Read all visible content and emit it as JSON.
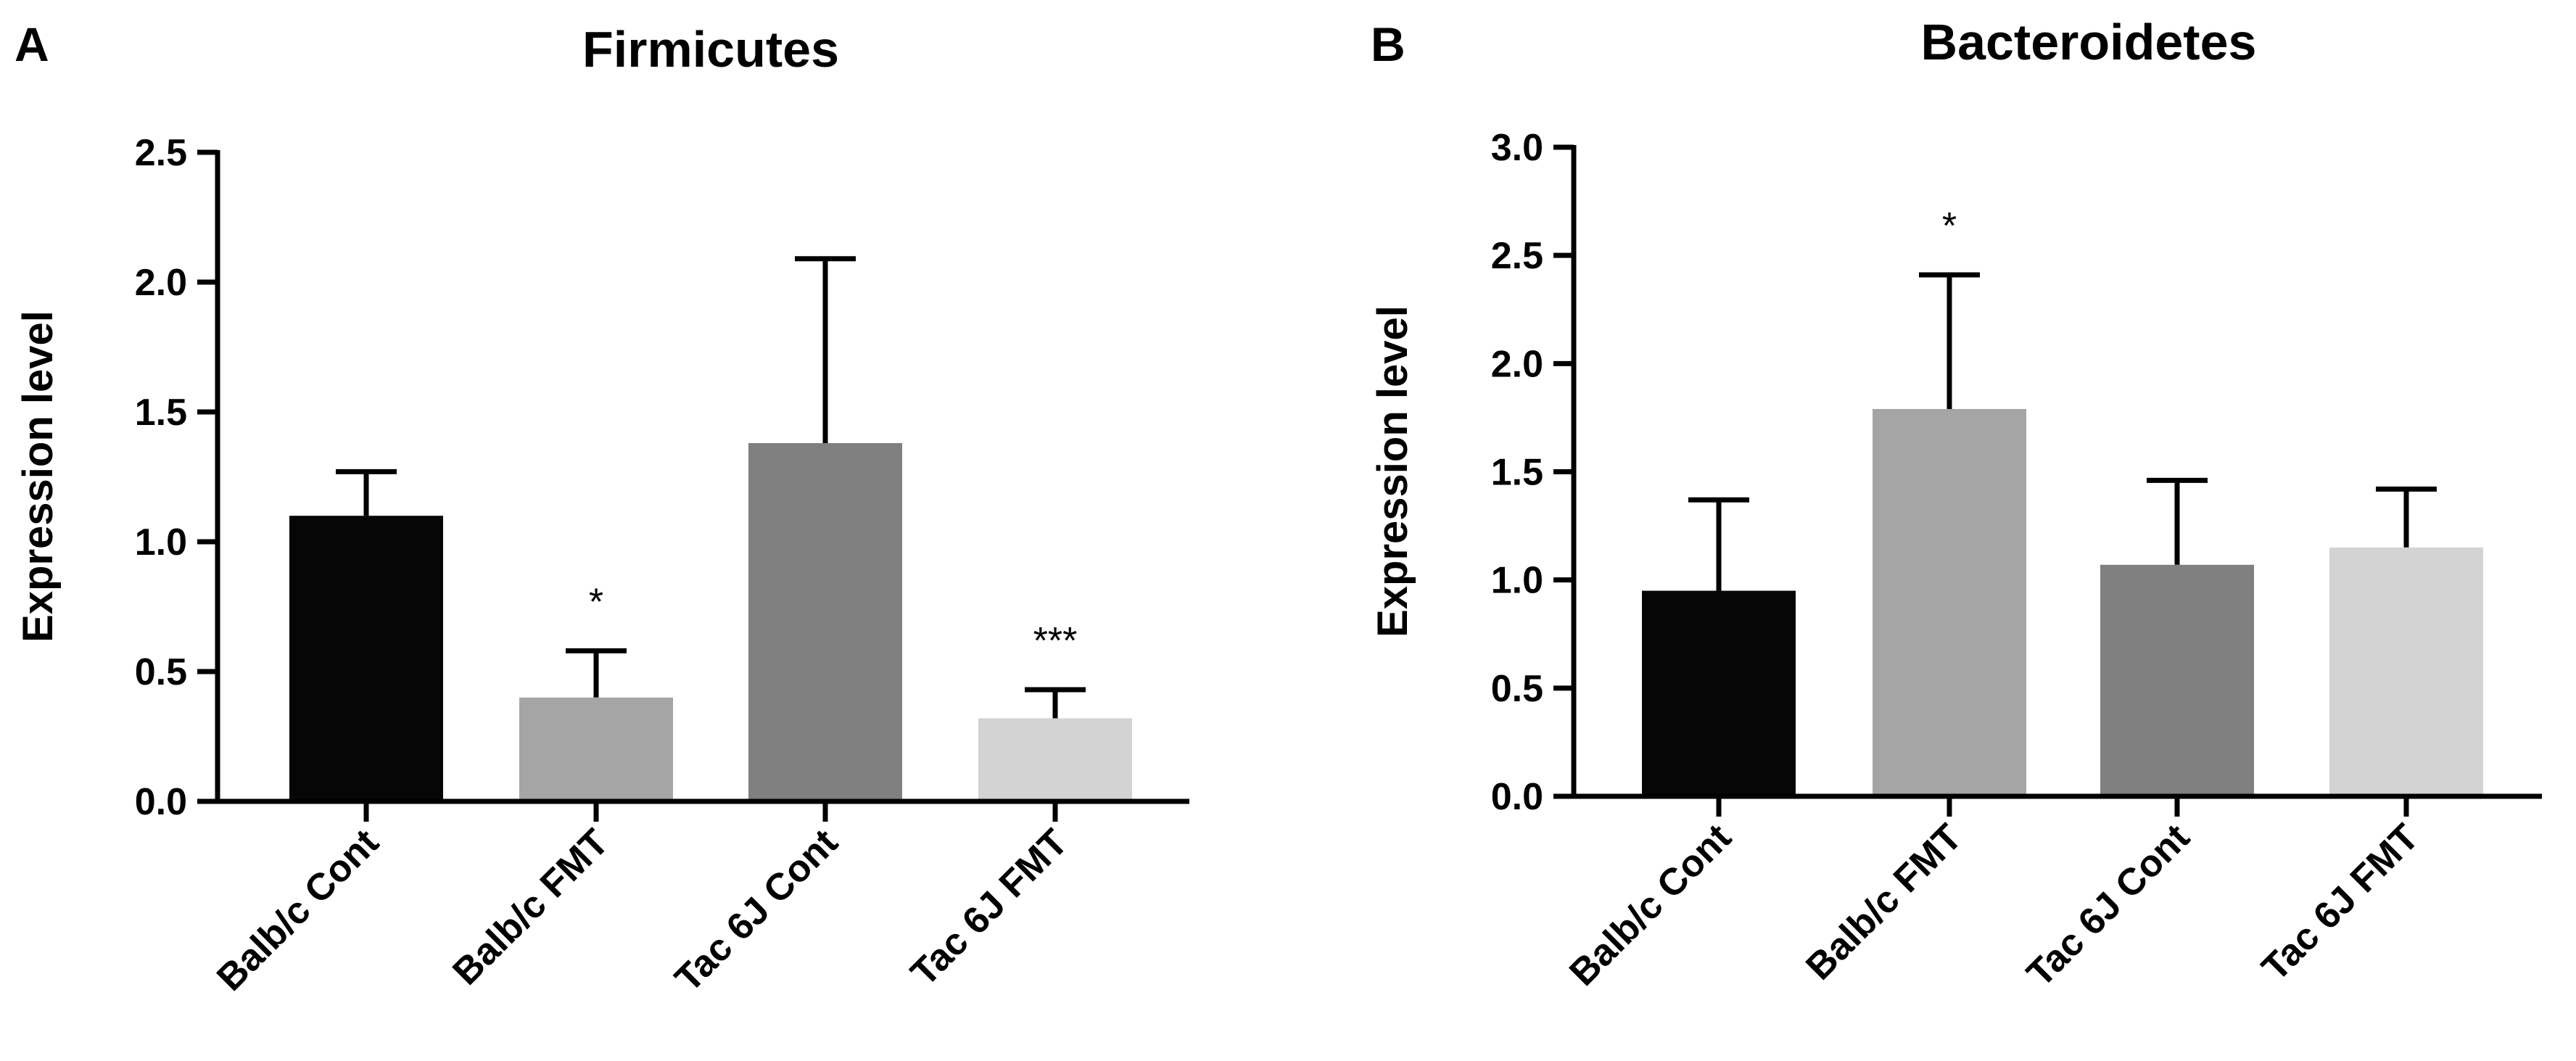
{
  "chart_data": [
    {
      "panel": "A",
      "type": "bar",
      "title": "Firmicutes",
      "xlabel": "",
      "ylabel": "Expression level",
      "ylim": [
        0,
        2.5
      ],
      "yticks": [
        "0.0",
        "0.5",
        "1.0",
        "1.5",
        "2.0",
        "2.5"
      ],
      "categories": [
        "Balb/c Cont",
        "Balb/c FMT",
        "Tac 6J Cont",
        "Tac 6J FMT"
      ],
      "values": [
        1.1,
        0.4,
        1.38,
        0.32
      ],
      "errors": [
        0.17,
        0.18,
        0.71,
        0.11
      ],
      "significance": [
        "",
        "*",
        "",
        "***"
      ],
      "colors": [
        "#060606",
        "#a5a5a5",
        "#808080",
        "#d3d3d3"
      ]
    },
    {
      "panel": "B",
      "type": "bar",
      "title": "Bacteroidetes",
      "xlabel": "",
      "ylabel": "Expression level",
      "ylim": [
        0,
        3.0
      ],
      "yticks": [
        "0.0",
        "0.5",
        "1.0",
        "1.5",
        "2.0",
        "2.5",
        "3.0"
      ],
      "categories": [
        "Balb/c Cont",
        "Balb/c FMT",
        "Tac 6J Cont",
        "Tac 6J FMT"
      ],
      "values": [
        0.95,
        1.79,
        1.07,
        1.15
      ],
      "errors": [
        0.42,
        0.62,
        0.39,
        0.27
      ],
      "significance": [
        "",
        "*",
        "",
        ""
      ],
      "colors": [
        "#060606",
        "#a5a5a5",
        "#808080",
        "#d3d3d3"
      ]
    }
  ]
}
